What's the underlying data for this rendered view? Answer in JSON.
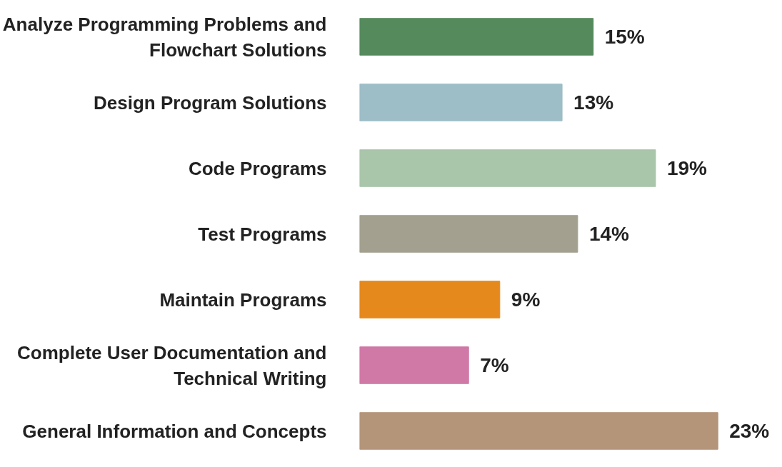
{
  "chart_data": {
    "type": "bar",
    "orientation": "horizontal",
    "grid": false,
    "value_labels": [
      "15%",
      "13%",
      "19%",
      "14%",
      "9%",
      "7%",
      "23%"
    ],
    "categories": [
      "Analyze Programming Problems and Flowchart Solutions",
      "Design Program Solutions",
      "Code Programs",
      "Test Programs",
      "Maintain Programs",
      "Complete User Documentation and Technical Writing",
      "General Information and Concepts"
    ],
    "values": [
      15,
      13,
      19,
      14,
      9,
      7,
      23
    ],
    "colors": [
      "#558a5c",
      "#9dbdc7",
      "#a9c5aa",
      "#a3a090",
      "#e5891d",
      "#d078a6",
      "#b4957a"
    ]
  }
}
